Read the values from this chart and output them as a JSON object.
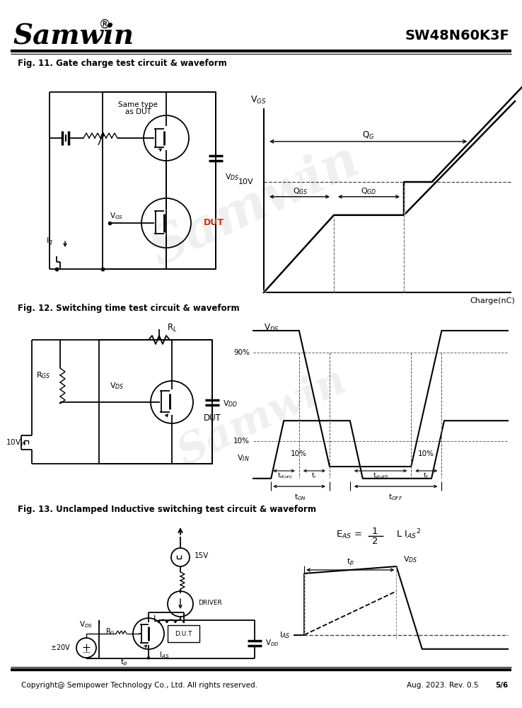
{
  "title_company": "Samwin",
  "title_part": "SW48N60K3F",
  "fig11_title": "Fig. 11. Gate charge test circuit & waveform",
  "fig12_title": "Fig. 12. Switching time test circuit & waveform",
  "fig13_title": "Fig. 13. Unclamped Inductive switching test circuit & waveform",
  "footer_left": "Copyright@ Semipower Technology Co., Ltd. All rights reserved.",
  "footer_right": "Aug. 2023. Rev. 0.5",
  "footer_page": "5/6",
  "bg_color": "#ffffff"
}
